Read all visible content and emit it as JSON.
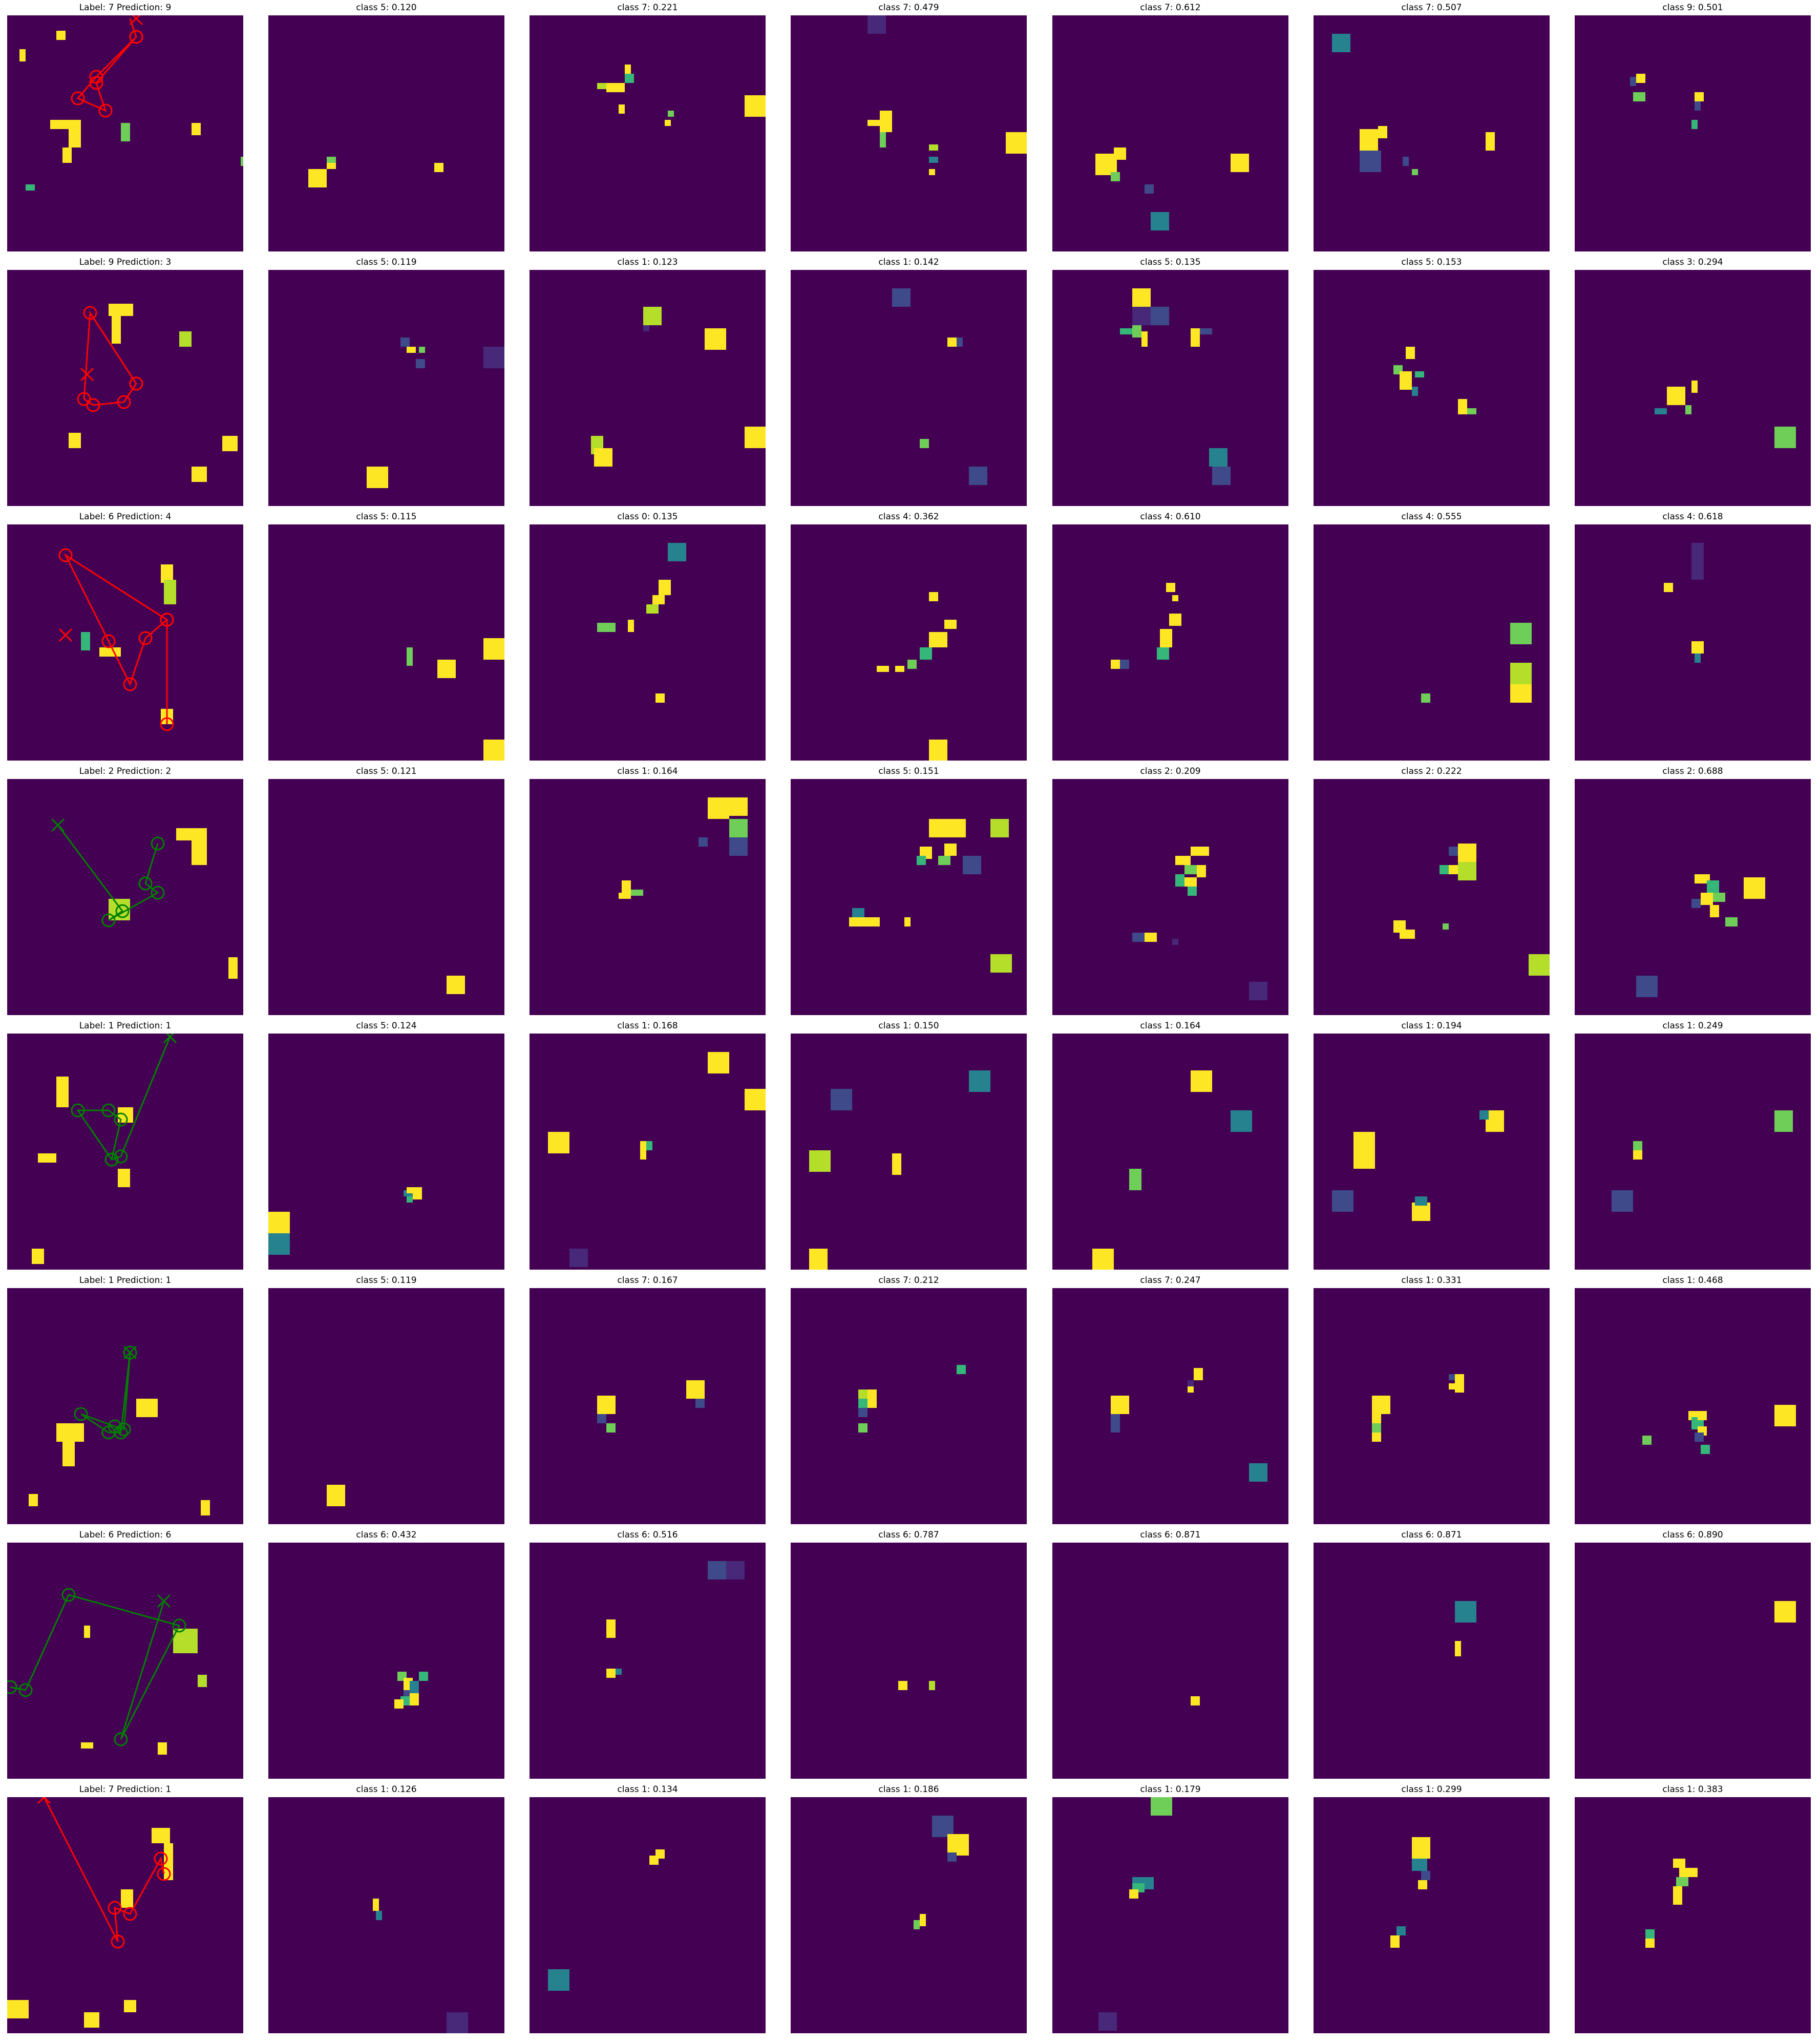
{
  "colormap": {
    "name": "viridis",
    "background": "#440154",
    "dark_purple": "#482878",
    "blue": "#3e4a89",
    "teal": "#26828e",
    "green": "#35b779",
    "light_green": "#6ece58",
    "yellow_green": "#b5de2b",
    "yellow": "#fde725"
  },
  "path_colors": {
    "correct": "#008000",
    "incorrect": "#ff0000"
  },
  "rows": [
    {
      "label": 7,
      "prediction": 9,
      "correct": false,
      "titles": [
        "Label: 7 Prediction: 9",
        "class 5: 0.120",
        "class 7: 0.221",
        "class 7: 0.479",
        "class 7: 0.612",
        "class 7: 0.507",
        "class 9: 0.501"
      ]
    },
    {
      "label": 9,
      "prediction": 3,
      "correct": false,
      "titles": [
        "Label: 9 Prediction: 3",
        "class 5: 0.119",
        "class 1: 0.123",
        "class 1: 0.142",
        "class 5: 0.135",
        "class 5: 0.153",
        "class 3: 0.294"
      ]
    },
    {
      "label": 6,
      "prediction": 4,
      "correct": false,
      "titles": [
        "Label: 6 Prediction: 4",
        "class 5: 0.115",
        "class 0: 0.135",
        "class 4: 0.362",
        "class 4: 0.610",
        "class 4: 0.555",
        "class 4: 0.618"
      ]
    },
    {
      "label": 2,
      "prediction": 2,
      "correct": true,
      "titles": [
        "Label: 2 Prediction: 2",
        "class 5: 0.121",
        "class 1: 0.164",
        "class 5: 0.151",
        "class 2: 0.209",
        "class 2: 0.222",
        "class 2: 0.688"
      ]
    },
    {
      "label": 1,
      "prediction": 1,
      "correct": true,
      "titles": [
        "Label: 1 Prediction: 1",
        "class 5: 0.124",
        "class 1: 0.168",
        "class 1: 0.150",
        "class 1: 0.164",
        "class 1: 0.194",
        "class 1: 0.249"
      ]
    },
    {
      "label": 1,
      "prediction": 1,
      "correct": true,
      "titles": [
        "Label: 1 Prediction: 1",
        "class 5: 0.119",
        "class 7: 0.167",
        "class 7: 0.212",
        "class 7: 0.247",
        "class 1: 0.331",
        "class 1: 0.468"
      ]
    },
    {
      "label": 6,
      "prediction": 6,
      "correct": true,
      "titles": [
        "Label: 6 Prediction: 6",
        "class 6: 0.432",
        "class 6: 0.516",
        "class 6: 0.787",
        "class 6: 0.871",
        "class 6: 0.871",
        "class 6: 0.890"
      ]
    },
    {
      "label": 7,
      "prediction": 1,
      "correct": false,
      "titles": [
        "Label: 7 Prediction: 1",
        "class 1: 0.126",
        "class 1: 0.134",
        "class 1: 0.186",
        "class 1: 0.179",
        "class 1: 0.299",
        "class 1: 0.383"
      ]
    }
  ]
}
